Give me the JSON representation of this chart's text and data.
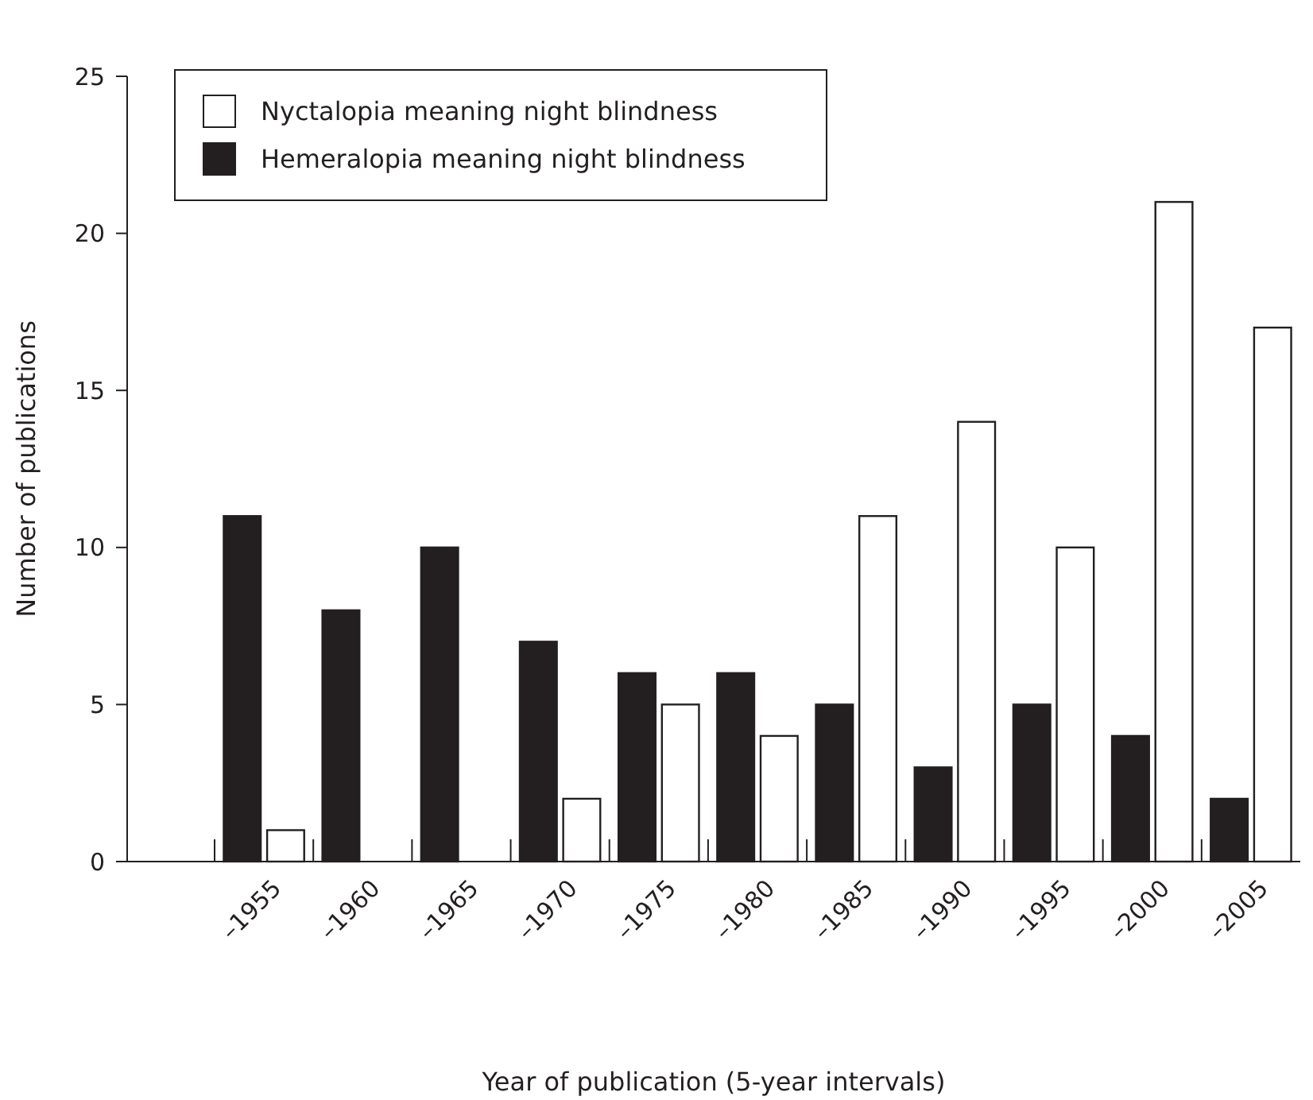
{
  "chart_data": {
    "type": "bar",
    "xlabel": "Year of publication (5-year intervals)",
    "ylabel": "Number of publications",
    "categories": [
      "–1955",
      "–1960",
      "–1965",
      "–1970",
      "–1975",
      "–1980",
      "–1985",
      "–1990",
      "–1995",
      "–2000",
      "–2005"
    ],
    "series": [
      {
        "name": "Hemeralopia meaning night blindness",
        "color": "#231f20",
        "values": [
          11,
          8,
          10,
          7,
          6,
          6,
          5,
          3,
          5,
          4,
          2
        ]
      },
      {
        "name": "Nyctalopia meaning night blindness",
        "color": "#ffffff",
        "values": [
          1,
          0,
          0,
          2,
          5,
          4,
          11,
          14,
          10,
          21,
          17
        ]
      }
    ],
    "ylim": [
      0,
      25
    ],
    "yticks": [
      0,
      5,
      10,
      15,
      20,
      25
    ],
    "grid": false,
    "legend": "top left"
  }
}
